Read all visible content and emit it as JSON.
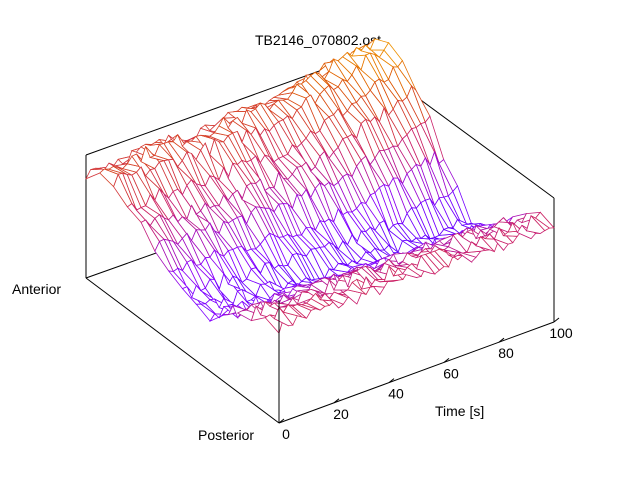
{
  "chart_data": {
    "type": "surface",
    "title": "TB2146_070802.ost",
    "xlabel": "Time [s]",
    "ylabel_start": "Anterior",
    "ylabel_end": "Posterior",
    "xlim": [
      0,
      100
    ],
    "xticks": [
      0,
      20,
      40,
      60,
      80,
      100
    ],
    "xtick_labels": [
      "0",
      "20",
      "40",
      "60",
      "80",
      "100"
    ],
    "grid": false,
    "colormap": [
      "#4400ff",
      "#8800ff",
      "#cc2266",
      "#dd5500",
      "#ffcc00"
    ],
    "surface_rows": 14,
    "surface_cols": 60
  }
}
